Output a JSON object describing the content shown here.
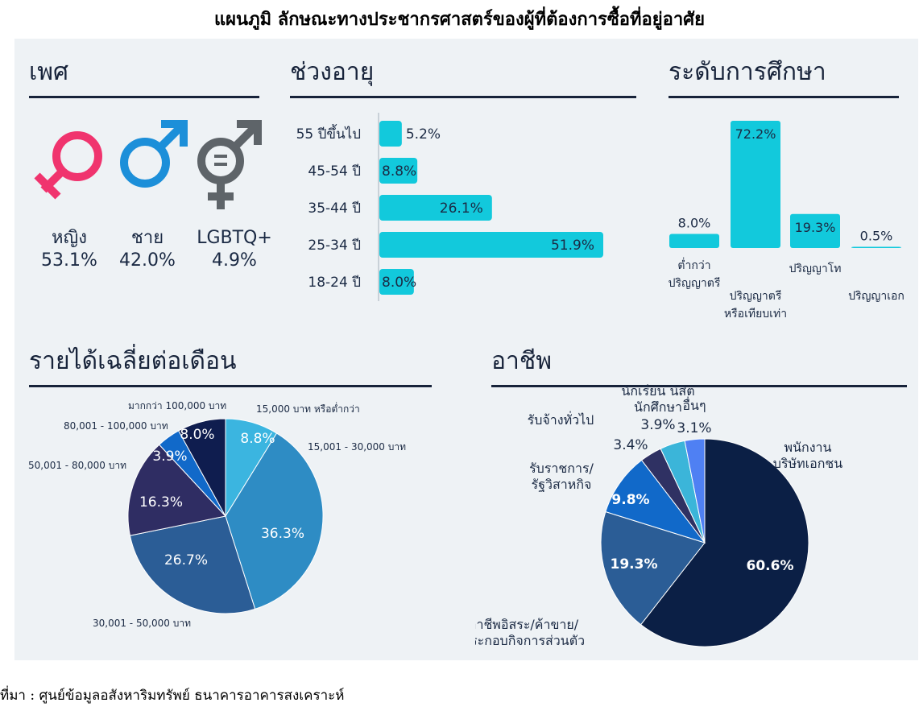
{
  "page_title": "แผนภูมิ ลักษณะทางประชากรศาสตร์ของผู้ที่ต้องการซื้อที่อยู่อาศัย",
  "source": "ที่มา : ศูนย์ข้อมูลอสังหาริมทรัพย์ ธนาคารอาคารสงเคราะห์",
  "sections": {
    "gender": "เพศ",
    "age": "ช่วงอายุ",
    "education": "ระดับการศึกษา",
    "income": "รายได้เฉลี่ยต่อเดือน",
    "occupation": "อาชีพ"
  },
  "colors": {
    "female": "#f0346e",
    "male": "#1c8fd9",
    "lgbtq": "#5e6469",
    "cyan": "#12c9dc",
    "navy": "#0b1f45"
  },
  "chart_data": [
    {
      "id": "gender",
      "type": "table",
      "categories": [
        "หญิง",
        "ชาย",
        "LGBTQ+"
      ],
      "values": [
        53.1,
        42.0,
        4.9
      ],
      "labels": [
        "53.1%",
        "42.0%",
        "4.9%"
      ],
      "icons": [
        "female-symbol-icon",
        "male-symbol-icon",
        "transgender-symbol-icon"
      ]
    },
    {
      "id": "age",
      "type": "bar",
      "orientation": "horizontal",
      "categories": [
        "55 ปีขึ้นไป",
        "45-54 ปี",
        "35-44 ปี",
        "25-34 ปี",
        "18-24 ปี"
      ],
      "values": [
        5.2,
        8.8,
        26.1,
        51.9,
        8.0
      ],
      "labels": [
        "5.2%",
        "8.8%",
        "26.1%",
        "51.9%",
        "8.0%"
      ]
    },
    {
      "id": "education",
      "type": "bar",
      "categories": [
        [
          "ต่ำกว่า",
          "ปริญญาตรี"
        ],
        [
          "ปริญญาตรี",
          "หรือเทียบเท่า"
        ],
        [
          "ปริญญาโท"
        ],
        [
          "ปริญญาเอก"
        ]
      ],
      "values": [
        8.0,
        72.2,
        19.3,
        0.5
      ],
      "labels": [
        "8.0%",
        "72.2%",
        "19.3%",
        "0.5%"
      ]
    },
    {
      "id": "income",
      "type": "pie",
      "categories": [
        "15,000 บาท หรือต่ำกว่า",
        "15,001 - 30,000 บาท",
        "30,001 - 50,000 บาท",
        "50,001 - 80,000 บาท",
        "80,001 - 100,000 บาท",
        "มากกว่า 100,000 บาท"
      ],
      "values": [
        8.8,
        36.3,
        26.7,
        16.3,
        3.9,
        8.0
      ],
      "labels": [
        "8.8%",
        "36.3%",
        "26.7%",
        "16.3%",
        "3.9%",
        "8.0%"
      ],
      "colors": [
        "#3bb5e0",
        "#2e8cc4",
        "#2b5d96",
        "#2f2d63",
        "#1169c9",
        "#0f1d4f"
      ]
    },
    {
      "id": "occupation",
      "type": "pie",
      "categories": [
        [
          "พนักงาน",
          "บริษัทเอกชน"
        ],
        [
          "อาชีพอิสระ/ค้าขาย/",
          "ประกอบกิจการส่วนตัว"
        ],
        [
          "รับราชการ/",
          "รัฐวิสาหกิจ"
        ],
        [
          "รับจ้างทั่วไป"
        ],
        [
          "นักเรียน นิสิต",
          "นักศึกษา"
        ],
        [
          "อื่นๆ"
        ]
      ],
      "values": [
        60.6,
        19.3,
        9.8,
        3.4,
        3.9,
        3.1
      ],
      "labels": [
        "60.6%",
        "19.3%",
        "9.8%",
        "3.4%",
        "3.9%",
        "3.1%"
      ],
      "colors": [
        "#0b1f45",
        "#2b5d96",
        "#1169c9",
        "#2f3163",
        "#3bb5d9",
        "#4f80f3"
      ]
    }
  ]
}
